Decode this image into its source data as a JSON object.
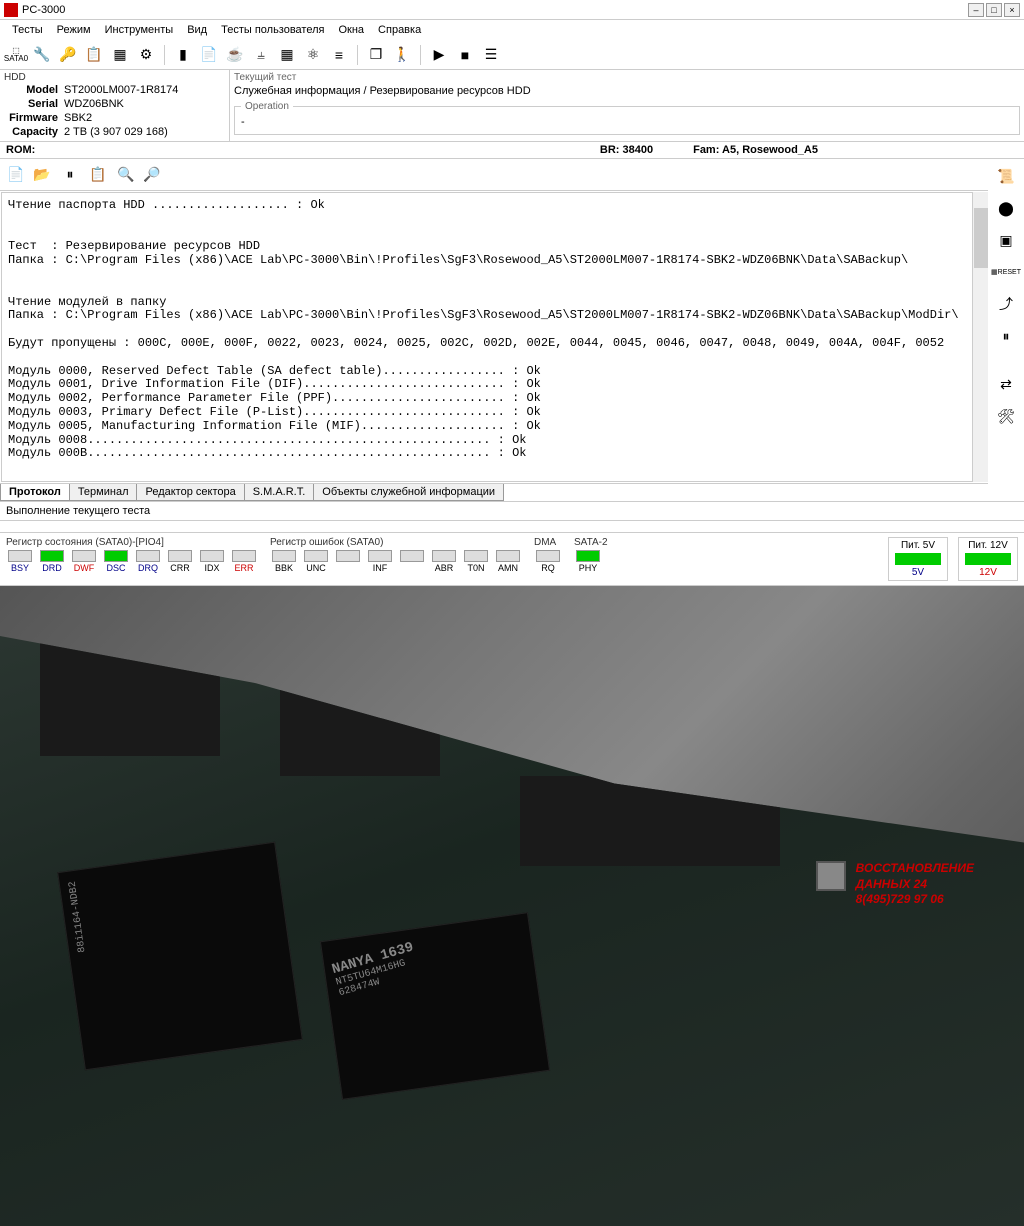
{
  "title": "PC-3000",
  "menu": [
    "Тесты",
    "Режим",
    "Инструменты",
    "Вид",
    "Тесты пользователя",
    "Окна",
    "Справка"
  ],
  "hdd": {
    "section": "HDD",
    "model_k": "Model",
    "model_v": "ST2000LM007-1R8174",
    "serial_k": "Serial",
    "serial_v": "WDZ06BNK",
    "firmware_k": "Firmware",
    "firmware_v": "SBK2",
    "capacity_k": "Capacity",
    "capacity_v": "2 TB (3 907 029 168)"
  },
  "test": {
    "section": "Текущий тест",
    "name": "Служебная информация / Резервирование ресурсов HDD",
    "op_section": "Operation",
    "op_value": "-"
  },
  "rom": {
    "left": "ROM:",
    "br": "BR:  38400",
    "fam": "Fam:  A5,  Rosewood_A5"
  },
  "log": "Чтение паспорта HDD ................... : Ok\n\n\nТест  : Резервирование ресурсов HDD\nПапка : C:\\Program Files (x86)\\ACE Lab\\PC-3000\\Bin\\!Profiles\\SgF3\\Rosewood_A5\\ST2000LM007-1R8174-SBK2-WDZ06BNK\\Data\\SABackup\\\n\n\nЧтение модулей в папку\nПапка : C:\\Program Files (x86)\\ACE Lab\\PC-3000\\Bin\\!Profiles\\SgF3\\Rosewood_A5\\ST2000LM007-1R8174-SBK2-WDZ06BNK\\Data\\SABackup\\ModDir\\\n\nБудут пропущены : 000C, 000E, 000F, 0022, 0023, 0024, 0025, 002C, 002D, 002E, 0044, 0045, 0046, 0047, 0048, 0049, 004A, 004F, 0052\n\nМодуль 0000, Reserved Defect Table (SA defect table)................. : Ok\nМодуль 0001, Drive Information File (DIF)............................ : Ok\nМодуль 0002, Performance Parameter File (PPF)........................ : Ok\nМодуль 0003, Primary Defect File (P-List)............................ : Ok\nМодуль 0005, Manufacturing Information File (MIF).................... : Ok\nМодуль 0008........................................................ : Ok\nМодуль 000B........................................................ : Ok",
  "tabs": [
    "Протокол",
    "Терминал",
    "Редактор сектора",
    "S.M.A.R.T.",
    "Объекты служебной информации"
  ],
  "status": "Выполнение текущего теста",
  "reg_state": {
    "title": "Регистр состояния (SATA0)-[PIO4]",
    "cells": [
      {
        "label": "BSY",
        "on": false,
        "cls": "blue"
      },
      {
        "label": "DRD",
        "on": true,
        "cls": "blue"
      },
      {
        "label": "DWF",
        "on": false,
        "cls": "red"
      },
      {
        "label": "DSC",
        "on": true,
        "cls": "blue"
      },
      {
        "label": "DRQ",
        "on": false,
        "cls": "blue"
      },
      {
        "label": "CRR",
        "on": false,
        "cls": ""
      },
      {
        "label": "IDX",
        "on": false,
        "cls": ""
      },
      {
        "label": "ERR",
        "on": false,
        "cls": "red"
      }
    ]
  },
  "reg_err": {
    "title": "Регистр ошибок  (SATA0)",
    "cells": [
      {
        "label": "BBK",
        "on": false,
        "cls": ""
      },
      {
        "label": "UNC",
        "on": false,
        "cls": ""
      },
      {
        "label": "",
        "on": false,
        "cls": ""
      },
      {
        "label": "INF",
        "on": false,
        "cls": ""
      },
      {
        "label": "",
        "on": false,
        "cls": ""
      },
      {
        "label": "ABR",
        "on": false,
        "cls": ""
      },
      {
        "label": "T0N",
        "on": false,
        "cls": ""
      },
      {
        "label": "AMN",
        "on": false,
        "cls": ""
      }
    ]
  },
  "reg_dma": {
    "title": "DMA",
    "cells": [
      {
        "label": "RQ",
        "on": false,
        "cls": ""
      }
    ]
  },
  "reg_sata2": {
    "title": "SATA-2",
    "cells": [
      {
        "label": "PHY",
        "on": true,
        "cls": ""
      }
    ]
  },
  "pwr5": {
    "title": "Пит. 5V",
    "val": "5V"
  },
  "pwr12": {
    "title": "Пит. 12V",
    "val": "12V"
  },
  "watermark": {
    "l1": "ВОССТАНОВЛЕНИЕ",
    "l2": "ДАННЫХ 24",
    "l3": "8(495)729 97 06"
  },
  "chip1": "88i1164-NDB2",
  "chip2a": "NANYA 1639",
  "chip2b": "NT5TU64M16HG",
  "chip2c": "628474W",
  "reset_label": "RESET"
}
